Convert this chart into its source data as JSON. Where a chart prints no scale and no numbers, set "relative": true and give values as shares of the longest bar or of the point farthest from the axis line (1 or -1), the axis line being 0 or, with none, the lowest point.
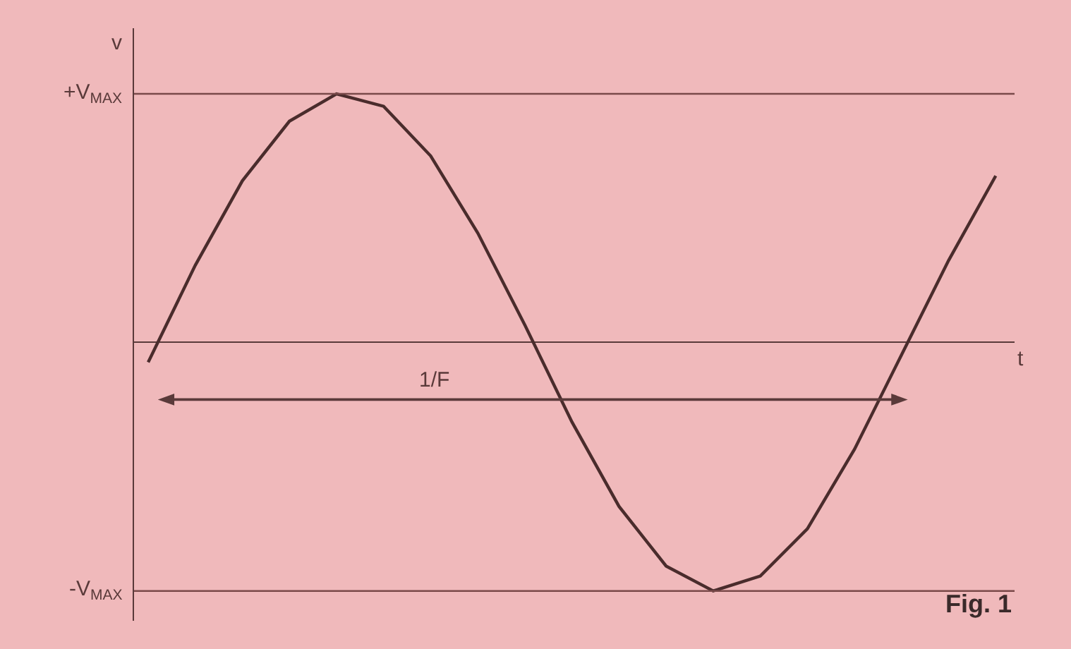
{
  "chart_data": {
    "type": "line",
    "relative": true,
    "xlabel": "t",
    "ylabel": "v",
    "color": "#4a2c2c",
    "marker": "none",
    "categories": [
      null,
      null,
      null,
      null,
      null,
      null,
      null,
      null,
      null,
      null,
      null,
      null,
      null,
      null,
      null,
      null,
      null,
      null,
      null
    ],
    "values": [
      -0.08,
      0.31,
      0.65,
      0.89,
      1.0,
      0.95,
      0.75,
      0.44,
      0.07,
      -0.32,
      -0.66,
      -0.9,
      -1.0,
      -0.94,
      -0.75,
      -0.43,
      -0.05,
      0.33,
      0.67
    ],
    "ref_lines": [
      {
        "axis": "y",
        "value": 1,
        "label": "+V$_{MAX}$",
        "color": "#7a4a4a"
      },
      {
        "axis": "y",
        "value": -1,
        "label": "-V$_{MAX}$",
        "color": "#7a4a4a"
      }
    ],
    "annotations": [
      "1/F",
      "Fig. 1"
    ]
  }
}
